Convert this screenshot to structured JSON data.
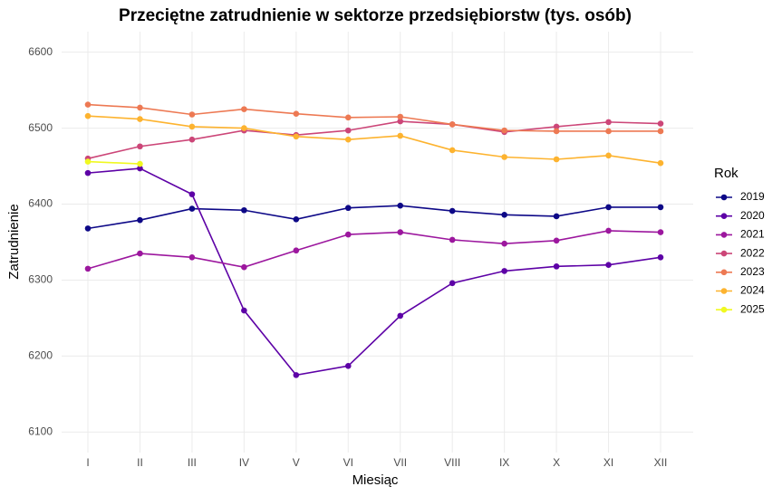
{
  "chart_data": {
    "type": "line",
    "title": "Przeciętne zatrudnienie w sektorze przedsiębiorstw (tys. osób)",
    "x_label": "Miesiąc",
    "y_label": "Zatrudnienie",
    "legend_title": "Rok",
    "categories": [
      "I",
      "II",
      "III",
      "IV",
      "V",
      "VI",
      "VII",
      "VIII",
      "IX",
      "X",
      "XI",
      "XII"
    ],
    "ylim": [
      6073,
      6627
    ],
    "yticks": [
      6100,
      6200,
      6300,
      6400,
      6500,
      6600
    ],
    "grid": true,
    "legend": "right",
    "series": [
      {
        "name": "2019",
        "color": "#0D0887",
        "values": [
          6368,
          6379,
          6394,
          6392,
          6380,
          6395,
          6398,
          6391,
          6386,
          6384,
          6396,
          6396
        ]
      },
      {
        "name": "2020",
        "color": "#5D01A6",
        "values": [
          6441,
          6447,
          6413,
          6260,
          6175,
          6187,
          6253,
          6296,
          6312,
          6318,
          6320,
          6330
        ]
      },
      {
        "name": "2021",
        "color": "#9C179E",
        "values": [
          6315,
          6335,
          6330,
          6317,
          6339,
          6360,
          6363,
          6353,
          6348,
          6352,
          6365,
          6363
        ]
      },
      {
        "name": "2022",
        "color": "#CC4678",
        "values": [
          6460,
          6476,
          6485,
          6497,
          6491,
          6497,
          6509,
          6505,
          6495,
          6502,
          6508,
          6506
        ]
      },
      {
        "name": "2023",
        "color": "#ED7953",
        "values": [
          6531,
          6527,
          6518,
          6525,
          6519,
          6514,
          6515,
          6505,
          6497,
          6496,
          6496,
          6496
        ]
      },
      {
        "name": "2024",
        "color": "#FDB32F",
        "values": [
          6516,
          6512,
          6502,
          6500,
          6489,
          6485,
          6490,
          6471,
          6462,
          6459,
          6464,
          6454
        ]
      },
      {
        "name": "2025",
        "color": "#F0F921",
        "values": [
          6456,
          6453,
          null,
          null,
          null,
          null,
          null,
          null,
          null,
          null,
          null,
          null
        ]
      }
    ]
  }
}
